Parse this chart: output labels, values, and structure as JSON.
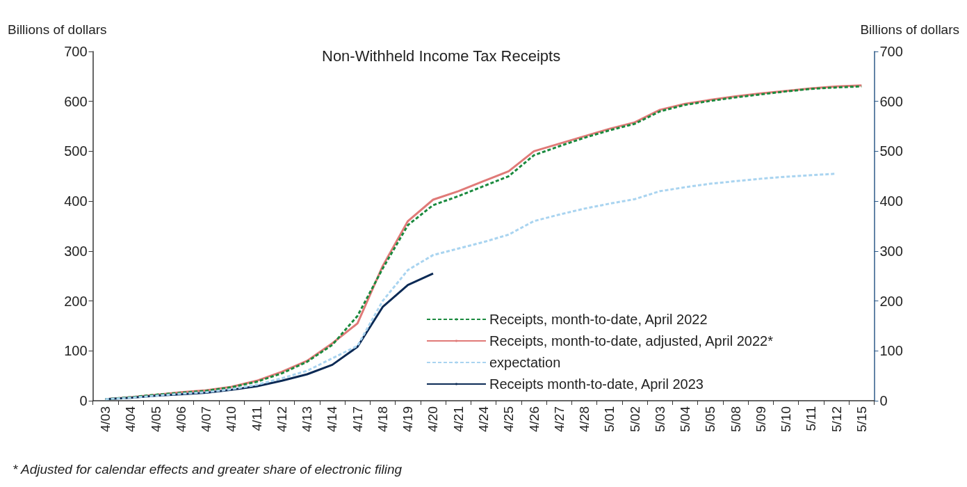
{
  "chart_data": {
    "type": "line",
    "title": "Non-Withheld Income Tax Receipts",
    "ylabel": "Billions of dollars",
    "y2label": "Billions of dollars",
    "categories": [
      "4/03",
      "4/04",
      "4/05",
      "4/06",
      "4/07",
      "4/10",
      "4/11",
      "4/12",
      "4/13",
      "4/14",
      "4/17",
      "4/18",
      "4/19",
      "4/20",
      "4/21",
      "4/24",
      "4/25",
      "4/26",
      "4/27",
      "4/28",
      "5/01",
      "5/02",
      "5/03",
      "5/04",
      "5/05",
      "5/08",
      "5/09",
      "5/10",
      "5/11",
      "5/12",
      "5/15"
    ],
    "series": [
      {
        "name": "Receipts, month-to-date, April 2022",
        "color": "#1a8a3e",
        "line_style": "dashed",
        "values": [
          3,
          7,
          12,
          16,
          20,
          27,
          38,
          55,
          78,
          112,
          170,
          265,
          352,
          392,
          410,
          430,
          450,
          492,
          510,
          527,
          542,
          555,
          580,
          593,
          601,
          608,
          614,
          620,
          625,
          628,
          630
        ]
      },
      {
        "name": "Receipts, month-to-date, adjusted, April 2022*",
        "color": "#e07a78",
        "line_style": "solid",
        "values": [
          3,
          7,
          12,
          17,
          21,
          28,
          40,
          58,
          80,
          115,
          155,
          270,
          360,
          403,
          420,
          440,
          460,
          500,
          515,
          530,
          545,
          558,
          583,
          595,
          603,
          610,
          616,
          621,
          626,
          630,
          632
        ]
      },
      {
        "name": "expectation",
        "color": "#a9d4f0",
        "line_style": "dashed",
        "values": [
          3,
          6,
          10,
          14,
          17,
          23,
          32,
          45,
          60,
          85,
          110,
          200,
          262,
          292,
          305,
          318,
          333,
          360,
          373,
          385,
          395,
          404,
          420,
          428,
          435,
          440,
          445,
          449,
          452,
          455,
          null
        ]
      },
      {
        "name": "Receipts month-to-date, April 2023",
        "color": "#0b2a55",
        "line_style": "solid",
        "values": [
          3,
          6,
          10,
          13,
          16,
          22,
          29,
          40,
          53,
          72,
          108,
          188,
          232,
          255,
          null,
          null,
          null,
          null,
          null,
          null,
          null,
          null,
          null,
          null,
          null,
          null,
          null,
          null,
          null,
          null,
          null
        ]
      }
    ],
    "ylim": [
      0,
      700
    ],
    "yticks": [
      0,
      100,
      200,
      300,
      400,
      500,
      600,
      700
    ],
    "y2lim": [
      0,
      700
    ],
    "y2ticks": [
      0,
      100,
      200,
      300,
      400,
      500,
      600,
      700
    ],
    "grid": false,
    "legend": "bottom right",
    "marker": "none",
    "annotations": [
      "* Adjusted for calendar effects and greater share of electronic filing"
    ]
  }
}
